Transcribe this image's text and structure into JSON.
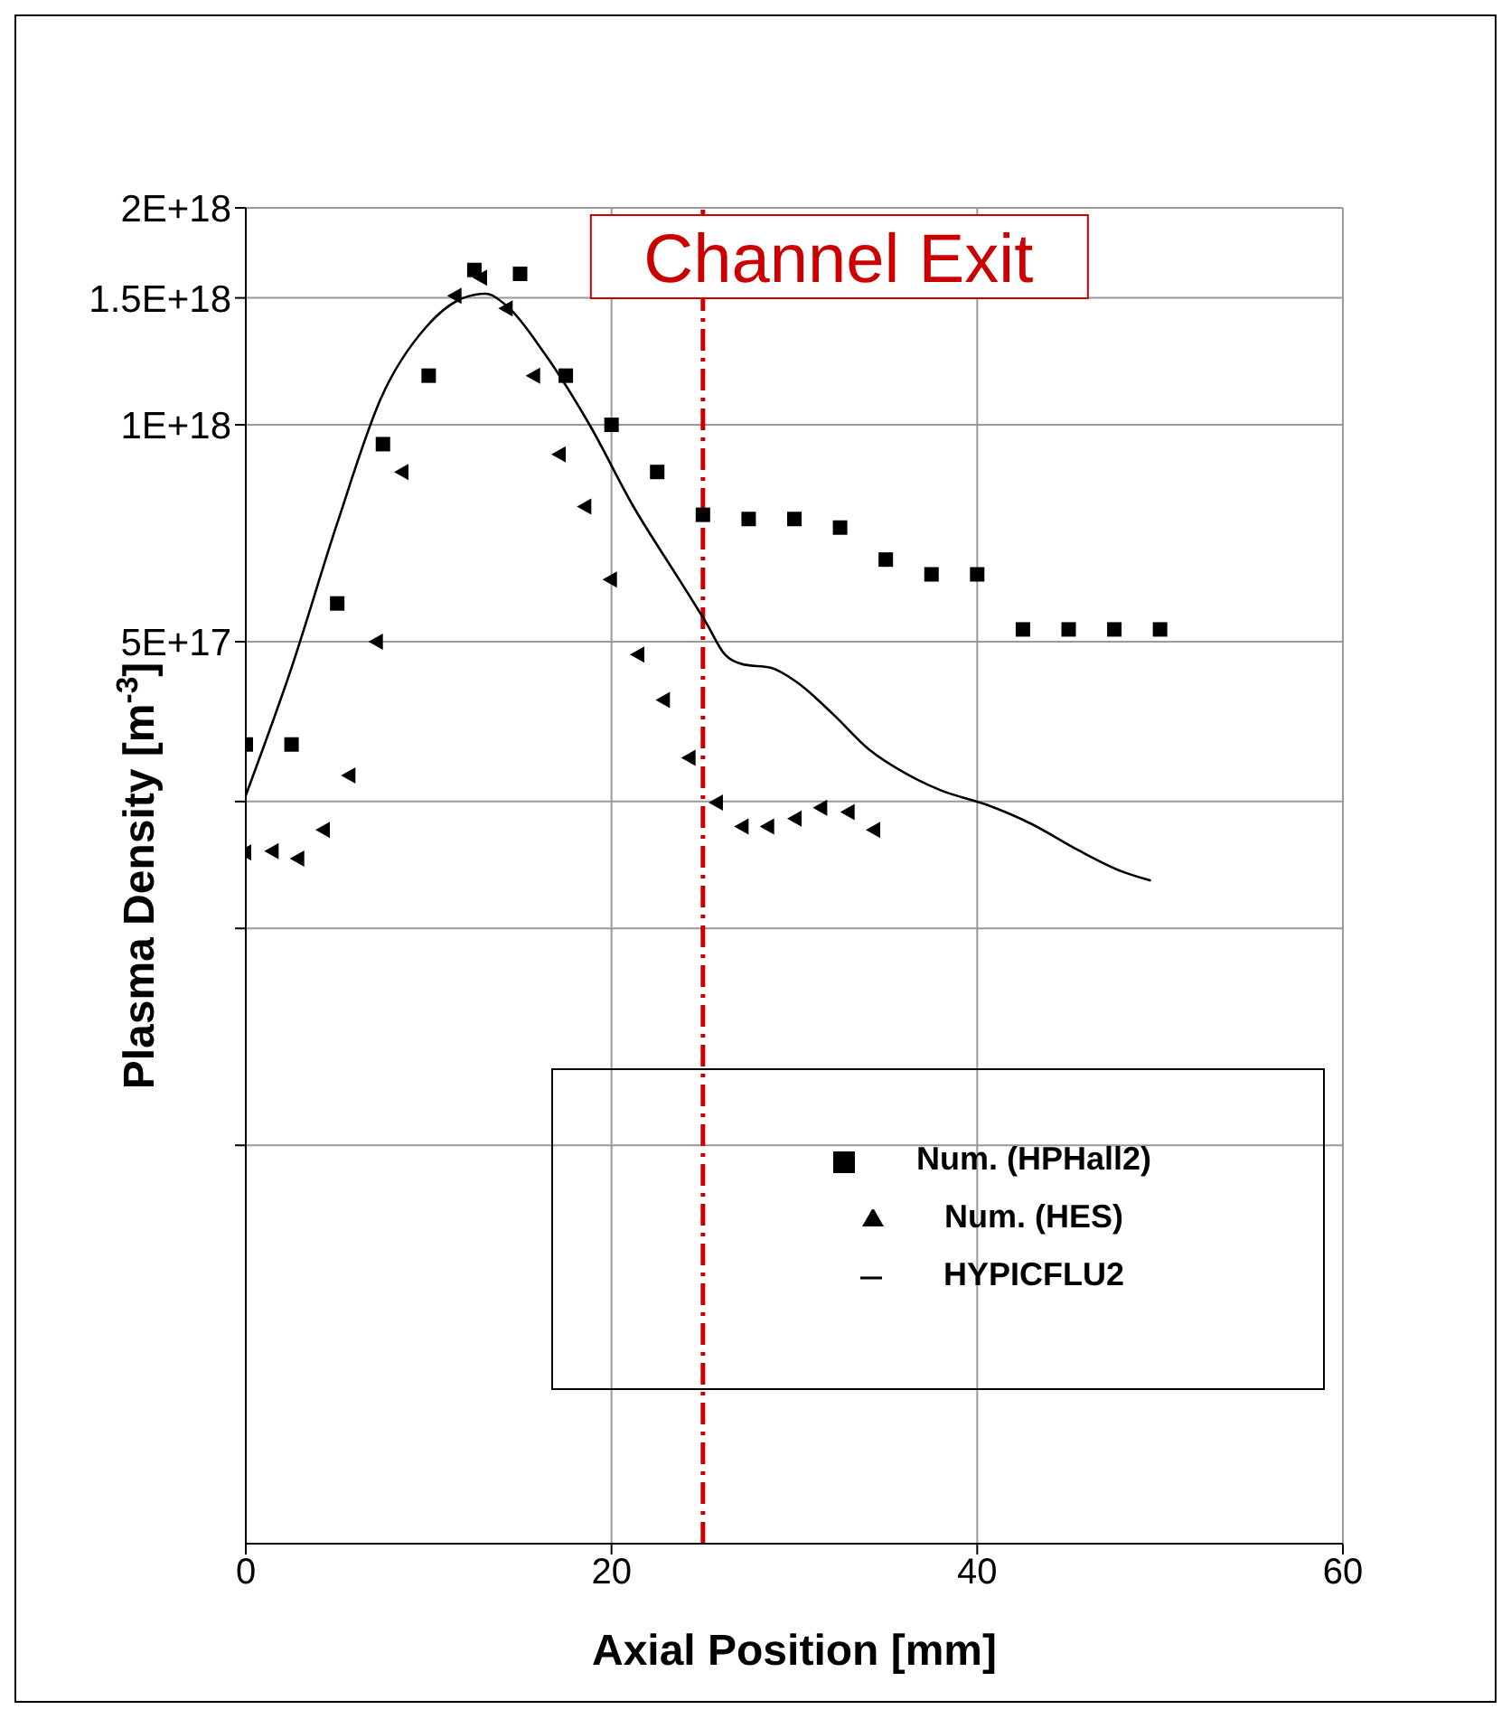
{
  "chart_data": {
    "type": "scatter",
    "xlabel": "Axial Position [mm]",
    "ylabel": "Plasma Density [m$^{-3}$]",
    "log": "y",
    "xlim": [
      0,
      60
    ],
    "xticks": [
      0,
      20,
      40,
      60
    ],
    "ylim": [
      2.8e+16,
      2e+18
    ],
    "yticks": [
      {
        "value": 1e+17,
        "label": null
      },
      {
        "value": 2e+17,
        "label": null
      },
      {
        "value": 3e+17,
        "label": null
      },
      {
        "value": 5e+17,
        "label": "5E+17"
      },
      {
        "value": 1e+18,
        "label": "1E+18"
      },
      {
        "value": 1.5e+18,
        "label": "1.5E+18"
      },
      {
        "value": 2e+18,
        "label": "2E+18"
      }
    ],
    "grid": true,
    "legend": "bottom right",
    "ref_lines": [
      {
        "axis": "x",
        "value": 25,
        "label": "Channel Exit",
        "color": "#cc0000",
        "line_style": "dashdot"
      }
    ],
    "series": [
      {
        "name": "Num. (HPHall2)",
        "marker": "square",
        "color": "#000000",
        "x": [
          0,
          2.5,
          5,
          7.5,
          10,
          12.5,
          15,
          17.5,
          20,
          22.5,
          25,
          27.5,
          30,
          32.5,
          35,
          37.5,
          40,
          42.5,
          45,
          47.5,
          50
        ],
        "values": [
          3.6e+17,
          3.6e+17,
          5.65e+17,
          9.4e+17,
          1.17e+18,
          1.64e+18,
          1.62e+18,
          1.17e+18,
          1e+18,
          8.6e+17,
          7.5e+17,
          7.4e+17,
          7.4e+17,
          7.2e+17,
          6.5e+17,
          6.2e+17,
          6.2e+17,
          5.2e+17,
          5.2e+17,
          5.2e+17,
          5.2e+17
        ]
      },
      {
        "name": "Num. (HES)",
        "marker": "triangle",
        "color": "#000000",
        "x": [
          0,
          1.5,
          2.9,
          4.3,
          5.7,
          7.2,
          8.6,
          11.5,
          12.9,
          14.3,
          15.8,
          17.2,
          18.6,
          20,
          21.5,
          22.9,
          24.3,
          25.8,
          27.2,
          28.6,
          30.1,
          31.5,
          33,
          34.4
        ],
        "values": [
          2.55e+17,
          2.56e+17,
          2.5e+17,
          2.74e+17,
          3.26e+17,
          5e+17,
          8.6e+17,
          1.51e+18,
          1.6e+18,
          1.45e+18,
          1.17e+18,
          9.1e+17,
          7.7e+17,
          6.1e+17,
          4.8e+17,
          4.15e+17,
          3.45e+17,
          2.99e+17,
          2.77e+17,
          2.77e+17,
          2.84e+17,
          2.94e+17,
          2.9e+17,
          2.74e+17
        ]
      },
      {
        "name": "HYPICFLU2",
        "type": "line",
        "marker": "none",
        "line_style": "solid",
        "color": "#000000",
        "x": [
          0,
          2.5,
          5,
          7.4,
          9.9,
          11.9,
          13.1,
          14.3,
          16.3,
          18.8,
          21.2,
          23.7,
          25.2,
          26.2,
          27.2,
          28.7,
          30.1,
          32.1,
          34.1,
          36.1,
          38,
          40.5,
          43,
          45.5,
          47.9,
          49.5
        ],
        "values": [
          3.06e+17,
          4.6e+17,
          7.3e+17,
          1.09e+18,
          1.37e+18,
          1.5e+18,
          1.52e+18,
          1.46e+18,
          1.26e+18,
          1e+18,
          7.7e+17,
          6.1e+17,
          5.3e+17,
          4.8e+17,
          4.65e+17,
          4.6e+17,
          4.4e+17,
          3.97e+17,
          3.54e+17,
          3.28e+17,
          3.11e+17,
          2.97e+17,
          2.79e+17,
          2.57e+17,
          2.4e+17,
          2.33e+17
        ]
      }
    ]
  }
}
